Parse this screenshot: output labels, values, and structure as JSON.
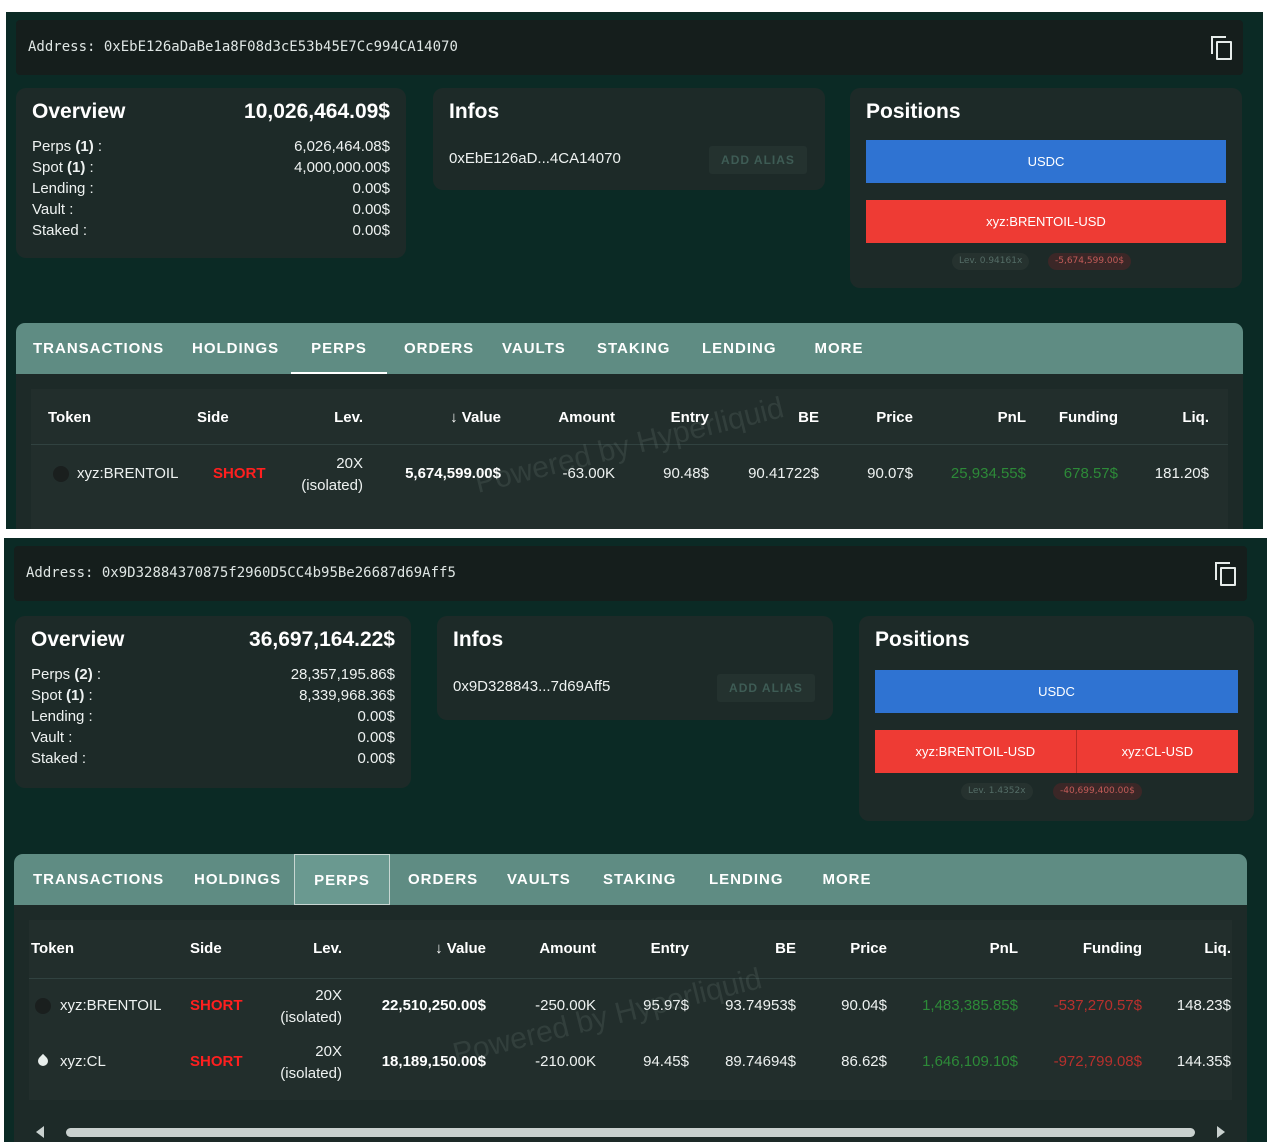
{
  "colors": {
    "background": "#0b2a25",
    "card": "#1d2a28",
    "tab_bar": "#5f8c83",
    "usdc_bar": "#2f73d2",
    "short_bar": "#ee3b34",
    "short_text": "#ff1f1f",
    "pnl_positive": "#2d8a38",
    "funding_negative": "#b8302d"
  },
  "icons": {
    "copy": "copy-icon",
    "sort": "arrow-down-icon",
    "token": "token-icon",
    "oil_drop": "oil-drop-icon",
    "scroll_left": "triangle-left-icon",
    "scroll_right": "triangle-right-icon"
  },
  "wallets": [
    {
      "address_label": "Address:",
      "address": "0xEbE126aDaBe1a8F08d3cE53b45E7Cc994CA14070",
      "overview": {
        "title": "Overview",
        "total": "10,026,464.09$",
        "rows": [
          {
            "label": "Perps",
            "count": "(1)",
            "colon": " :",
            "value": "6,026,464.08$"
          },
          {
            "label": "Spot",
            "count": "(1)",
            "colon": " :",
            "value": "4,000,000.00$"
          },
          {
            "label": "Lending :",
            "count": "",
            "colon": "",
            "value": "0.00$"
          },
          {
            "label": "Vault :",
            "count": "",
            "colon": "",
            "value": "0.00$"
          },
          {
            "label": "Staked :",
            "count": "",
            "colon": "",
            "value": "0.00$"
          }
        ]
      },
      "infos": {
        "title": "Infos",
        "short_address": "0xEbE126aD...4CA14070",
        "alias_button": "ADD ALIAS"
      },
      "positions": {
        "title": "Positions",
        "usdc_label": "USDC",
        "short_segments": [
          {
            "label": "xyz:BRENTOIL-USD",
            "share": 1.0
          }
        ],
        "leverage": "Lev. 0.94161x",
        "exposure": "-5,674,599.00$"
      },
      "tabs": [
        "TRANSACTIONS",
        "HOLDINGS",
        "PERPS",
        "ORDERS",
        "VAULTS",
        "STAKING",
        "LENDING",
        "MORE"
      ],
      "active_tab": "PERPS",
      "table": {
        "headers": [
          "Token",
          "Side",
          "Lev.",
          "Value",
          "Amount",
          "Entry",
          "BE",
          "Price",
          "PnL",
          "Funding",
          "Liq."
        ],
        "rows": [
          {
            "token": "xyz:BRENTOIL",
            "side": "SHORT",
            "lev_main": "20X",
            "lev_sub": "(isolated)",
            "value": "5,674,599.00$",
            "amount": "-63.00K",
            "entry": "90.48$",
            "be": "90.41722$",
            "price": "90.07$",
            "pnl": "25,934.55$",
            "funding": "678.57$",
            "liq": "181.20$"
          }
        ]
      },
      "watermark": "Powered by Hyperliquid"
    },
    {
      "address_label": "Address:",
      "address": "0x9D32884370875f2960D5CC4b95Be26687d69Aff5",
      "overview": {
        "title": "Overview",
        "total": "36,697,164.22$",
        "rows": [
          {
            "label": "Perps",
            "count": "(2)",
            "colon": " :",
            "value": "28,357,195.86$"
          },
          {
            "label": "Spot",
            "count": "(1)",
            "colon": " :",
            "value": "8,339,968.36$"
          },
          {
            "label": "Lending :",
            "count": "",
            "colon": "",
            "value": "0.00$"
          },
          {
            "label": "Vault :",
            "count": "",
            "colon": "",
            "value": "0.00$"
          },
          {
            "label": "Staked :",
            "count": "",
            "colon": "",
            "value": "0.00$"
          }
        ]
      },
      "infos": {
        "title": "Infos",
        "short_address": "0x9D328843...7d69Aff5",
        "alias_button": "ADD ALIAS"
      },
      "positions": {
        "title": "Positions",
        "usdc_label": "USDC",
        "short_segments": [
          {
            "label": "xyz:BRENTOIL-USD",
            "share": 0.553
          },
          {
            "label": "xyz:CL-USD",
            "share": 0.447
          }
        ],
        "leverage": "Lev. 1.4352x",
        "exposure": "-40,699,400.00$"
      },
      "tabs": [
        "TRANSACTIONS",
        "HOLDINGS",
        "PERPS",
        "ORDERS",
        "VAULTS",
        "STAKING",
        "LENDING",
        "MORE"
      ],
      "active_tab": "PERPS",
      "table": {
        "headers": [
          "Token",
          "Side",
          "Lev.",
          "Value",
          "Amount",
          "Entry",
          "BE",
          "Price",
          "PnL",
          "Funding",
          "Liq."
        ],
        "rows": [
          {
            "token": "xyz:BRENTOIL",
            "side": "SHORT",
            "lev_main": "20X",
            "lev_sub": "(isolated)",
            "value": "22,510,250.00$",
            "amount": "-250.00K",
            "entry": "95.97$",
            "be": "93.74953$",
            "price": "90.04$",
            "pnl": "1,483,385.85$",
            "funding": "-537,270.57$",
            "liq": "148.23$"
          },
          {
            "token": "xyz:CL",
            "side": "SHORT",
            "lev_main": "20X",
            "lev_sub": "(isolated)",
            "value": "18,189,150.00$",
            "amount": "-210.00K",
            "entry": "94.45$",
            "be": "89.74694$",
            "price": "86.62$",
            "pnl": "1,646,109.10$",
            "funding": "-972,799.08$",
            "liq": "144.35$"
          }
        ]
      },
      "watermark": "Powered by Hyperliquid"
    }
  ]
}
